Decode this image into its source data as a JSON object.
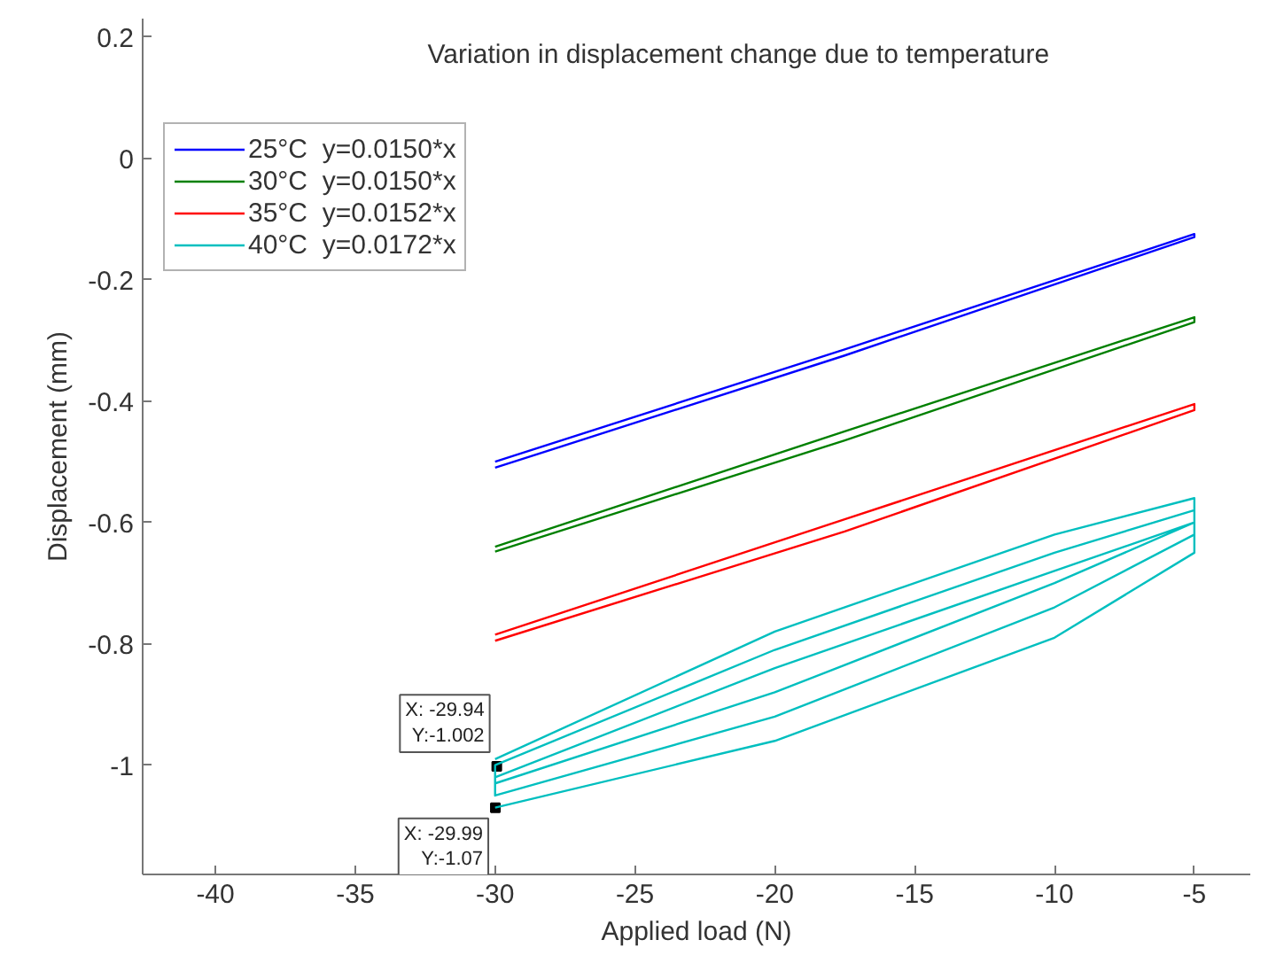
{
  "chart_data": {
    "type": "line",
    "title": "Variation in displacement change due to temperature",
    "xlabel": "Applied load (N)",
    "ylabel": "Displacement (mm)",
    "xlim": [
      -42.6,
      -3
    ],
    "ylim": [
      -1.18,
      0.23
    ],
    "xticks": [
      -40,
      -35,
      -30,
      -25,
      -20,
      -15,
      -10,
      -5
    ],
    "yticks": [
      -1,
      -0.8,
      -0.6,
      -0.4,
      -0.2,
      0,
      0.2
    ],
    "grid": false,
    "legend": "top left",
    "marker": "none",
    "line_style": "solid",
    "series": [
      {
        "name": "25°C  y=0.0150*x",
        "color": "#0000ff",
        "x": [
          -30,
          -17.5,
          -5,
          -5,
          -17.5,
          -30
        ],
        "values": [
          -0.51,
          -0.325,
          -0.13,
          -0.125,
          -0.315,
          -0.5
        ]
      },
      {
        "name": "30°C  y=0.0150*x",
        "color": "#008000",
        "x": [
          -30,
          -17.5,
          -5,
          -5,
          -17.5,
          -30
        ],
        "values": [
          -0.648,
          -0.465,
          -0.27,
          -0.262,
          -0.45,
          -0.64
        ]
      },
      {
        "name": "35°C  y=0.0152*x",
        "color": "#ff0000",
        "x": [
          -30,
          -17.5,
          -5,
          -5,
          -17.5,
          -30
        ],
        "values": [
          -0.795,
          -0.615,
          -0.415,
          -0.405,
          -0.595,
          -0.785
        ]
      },
      {
        "name": "40°C  y=0.0172*x",
        "color": "#00bfbf",
        "x": [
          -30,
          -20,
          -10,
          -5,
          -5,
          -10,
          -20,
          -30,
          -30,
          -20,
          -10,
          -5,
          -5,
          -10,
          -20,
          -30,
          -30,
          -20,
          -10,
          -5,
          -5,
          -10,
          -20,
          -30
        ],
        "values": [
          -1.07,
          -0.96,
          -0.79,
          -0.65,
          -0.6,
          -0.68,
          -0.84,
          -1.02,
          -1.05,
          -0.92,
          -0.74,
          -0.62,
          -0.58,
          -0.65,
          -0.81,
          -1.0,
          -1.03,
          -0.88,
          -0.7,
          -0.6,
          -0.56,
          -0.62,
          -0.78,
          -0.99
        ]
      }
    ],
    "annotations": [
      {
        "text": "X: -29.94\nY:-1.002",
        "x": -29.94,
        "y": -1.002
      },
      {
        "text": "X: -29.99\nY:-1.07",
        "x": -29.99,
        "y": -1.07
      }
    ]
  }
}
